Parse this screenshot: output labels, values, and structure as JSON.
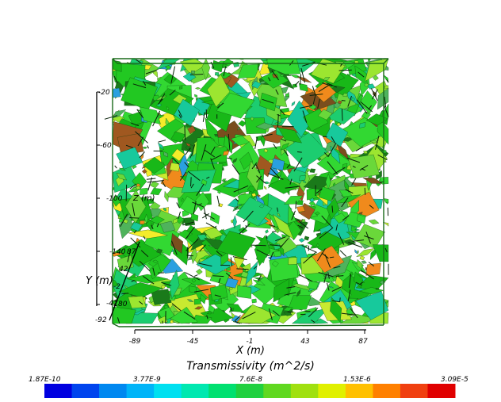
{
  "chart_data": {
    "type": "3d-fracture-network",
    "colorbar": {
      "title": "Transmissivity (m^2/s)",
      "scale": "log",
      "range": [
        1.87e-10,
        3.09e-05
      ],
      "tick_labels": [
        "1.87E-10",
        "3.77E-9",
        "7.6E-8",
        "1.53E-6",
        "3.09E-5"
      ],
      "tick_values": [
        1.87e-10,
        3.77e-09,
        7.6e-08,
        1.53e-06,
        3.09e-05
      ],
      "colors": [
        "#0000e0",
        "#0044ee",
        "#0088f0",
        "#00b4f8",
        "#00e0f0",
        "#00e8b0",
        "#00e070",
        "#20d040",
        "#60d820",
        "#a0e010",
        "#e0f000",
        "#ffc000",
        "#ff8000",
        "#f04010",
        "#e00000"
      ]
    },
    "x_axis": {
      "label": "X (m)",
      "ticks": [
        "-89",
        "-45",
        "-1",
        "43",
        "87"
      ]
    },
    "y_axis": {
      "label": "Y (m)",
      "ticks": [
        "-92",
        "-47",
        "-2",
        "42",
        "87"
      ]
    },
    "z_axis": {
      "label": "Z (m)",
      "ticks": [
        "-20",
        "-60",
        "-100",
        "-140",
        "-180"
      ]
    },
    "fracture_colors": [
      "#22c822",
      "#32d832",
      "#18b818",
      "#6ad83a",
      "#9ce630",
      "#1ccd70",
      "#17c99c",
      "#f08a1c",
      "#f4ec2a",
      "#a05820",
      "#2aa0e0",
      "#7a4e1e",
      "#4fb35c",
      "#c8ea30",
      "#1a7a1a"
    ],
    "box_color": "#1a6a1a",
    "grid": false
  }
}
